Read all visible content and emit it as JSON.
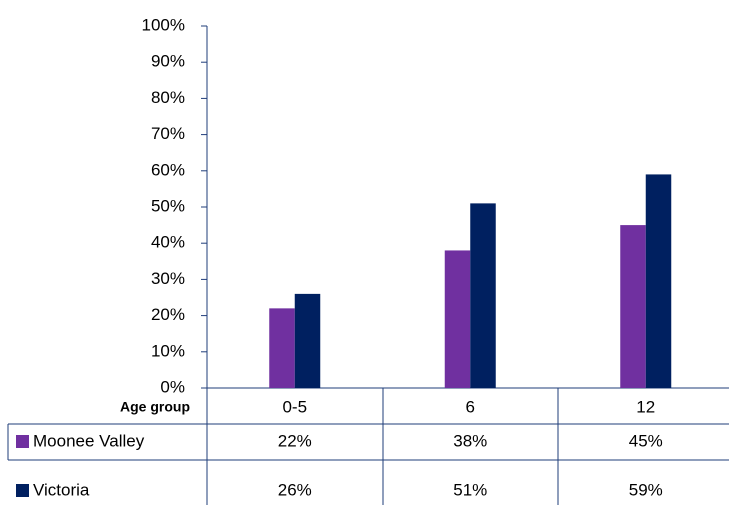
{
  "chart_data": {
    "type": "bar",
    "categories": [
      "0-5",
      "6",
      "12"
    ],
    "x_label": "Age group",
    "series": [
      {
        "name": "Moonee Valley",
        "color": "#7030a0",
        "values": [
          22,
          38,
          45
        ],
        "value_labels": [
          "22%",
          "38%",
          "45%"
        ]
      },
      {
        "name": "Victoria",
        "color": "#002060",
        "values": [
          26,
          51,
          59
        ],
        "value_labels": [
          "26%",
          "51%",
          "59%"
        ]
      }
    ],
    "ylim": [
      0,
      100
    ],
    "yticks": [
      {
        "value": 0,
        "label": "0%"
      },
      {
        "value": 10,
        "label": "10%"
      },
      {
        "value": 20,
        "label": "20%"
      },
      {
        "value": 30,
        "label": "30%"
      },
      {
        "value": 40,
        "label": "40%"
      },
      {
        "value": 50,
        "label": "50%"
      },
      {
        "value": 60,
        "label": "60%"
      },
      {
        "value": 70,
        "label": "70%"
      },
      {
        "value": 80,
        "label": "80%"
      },
      {
        "value": 90,
        "label": "90%"
      },
      {
        "value": 100,
        "label": "100%"
      }
    ]
  }
}
